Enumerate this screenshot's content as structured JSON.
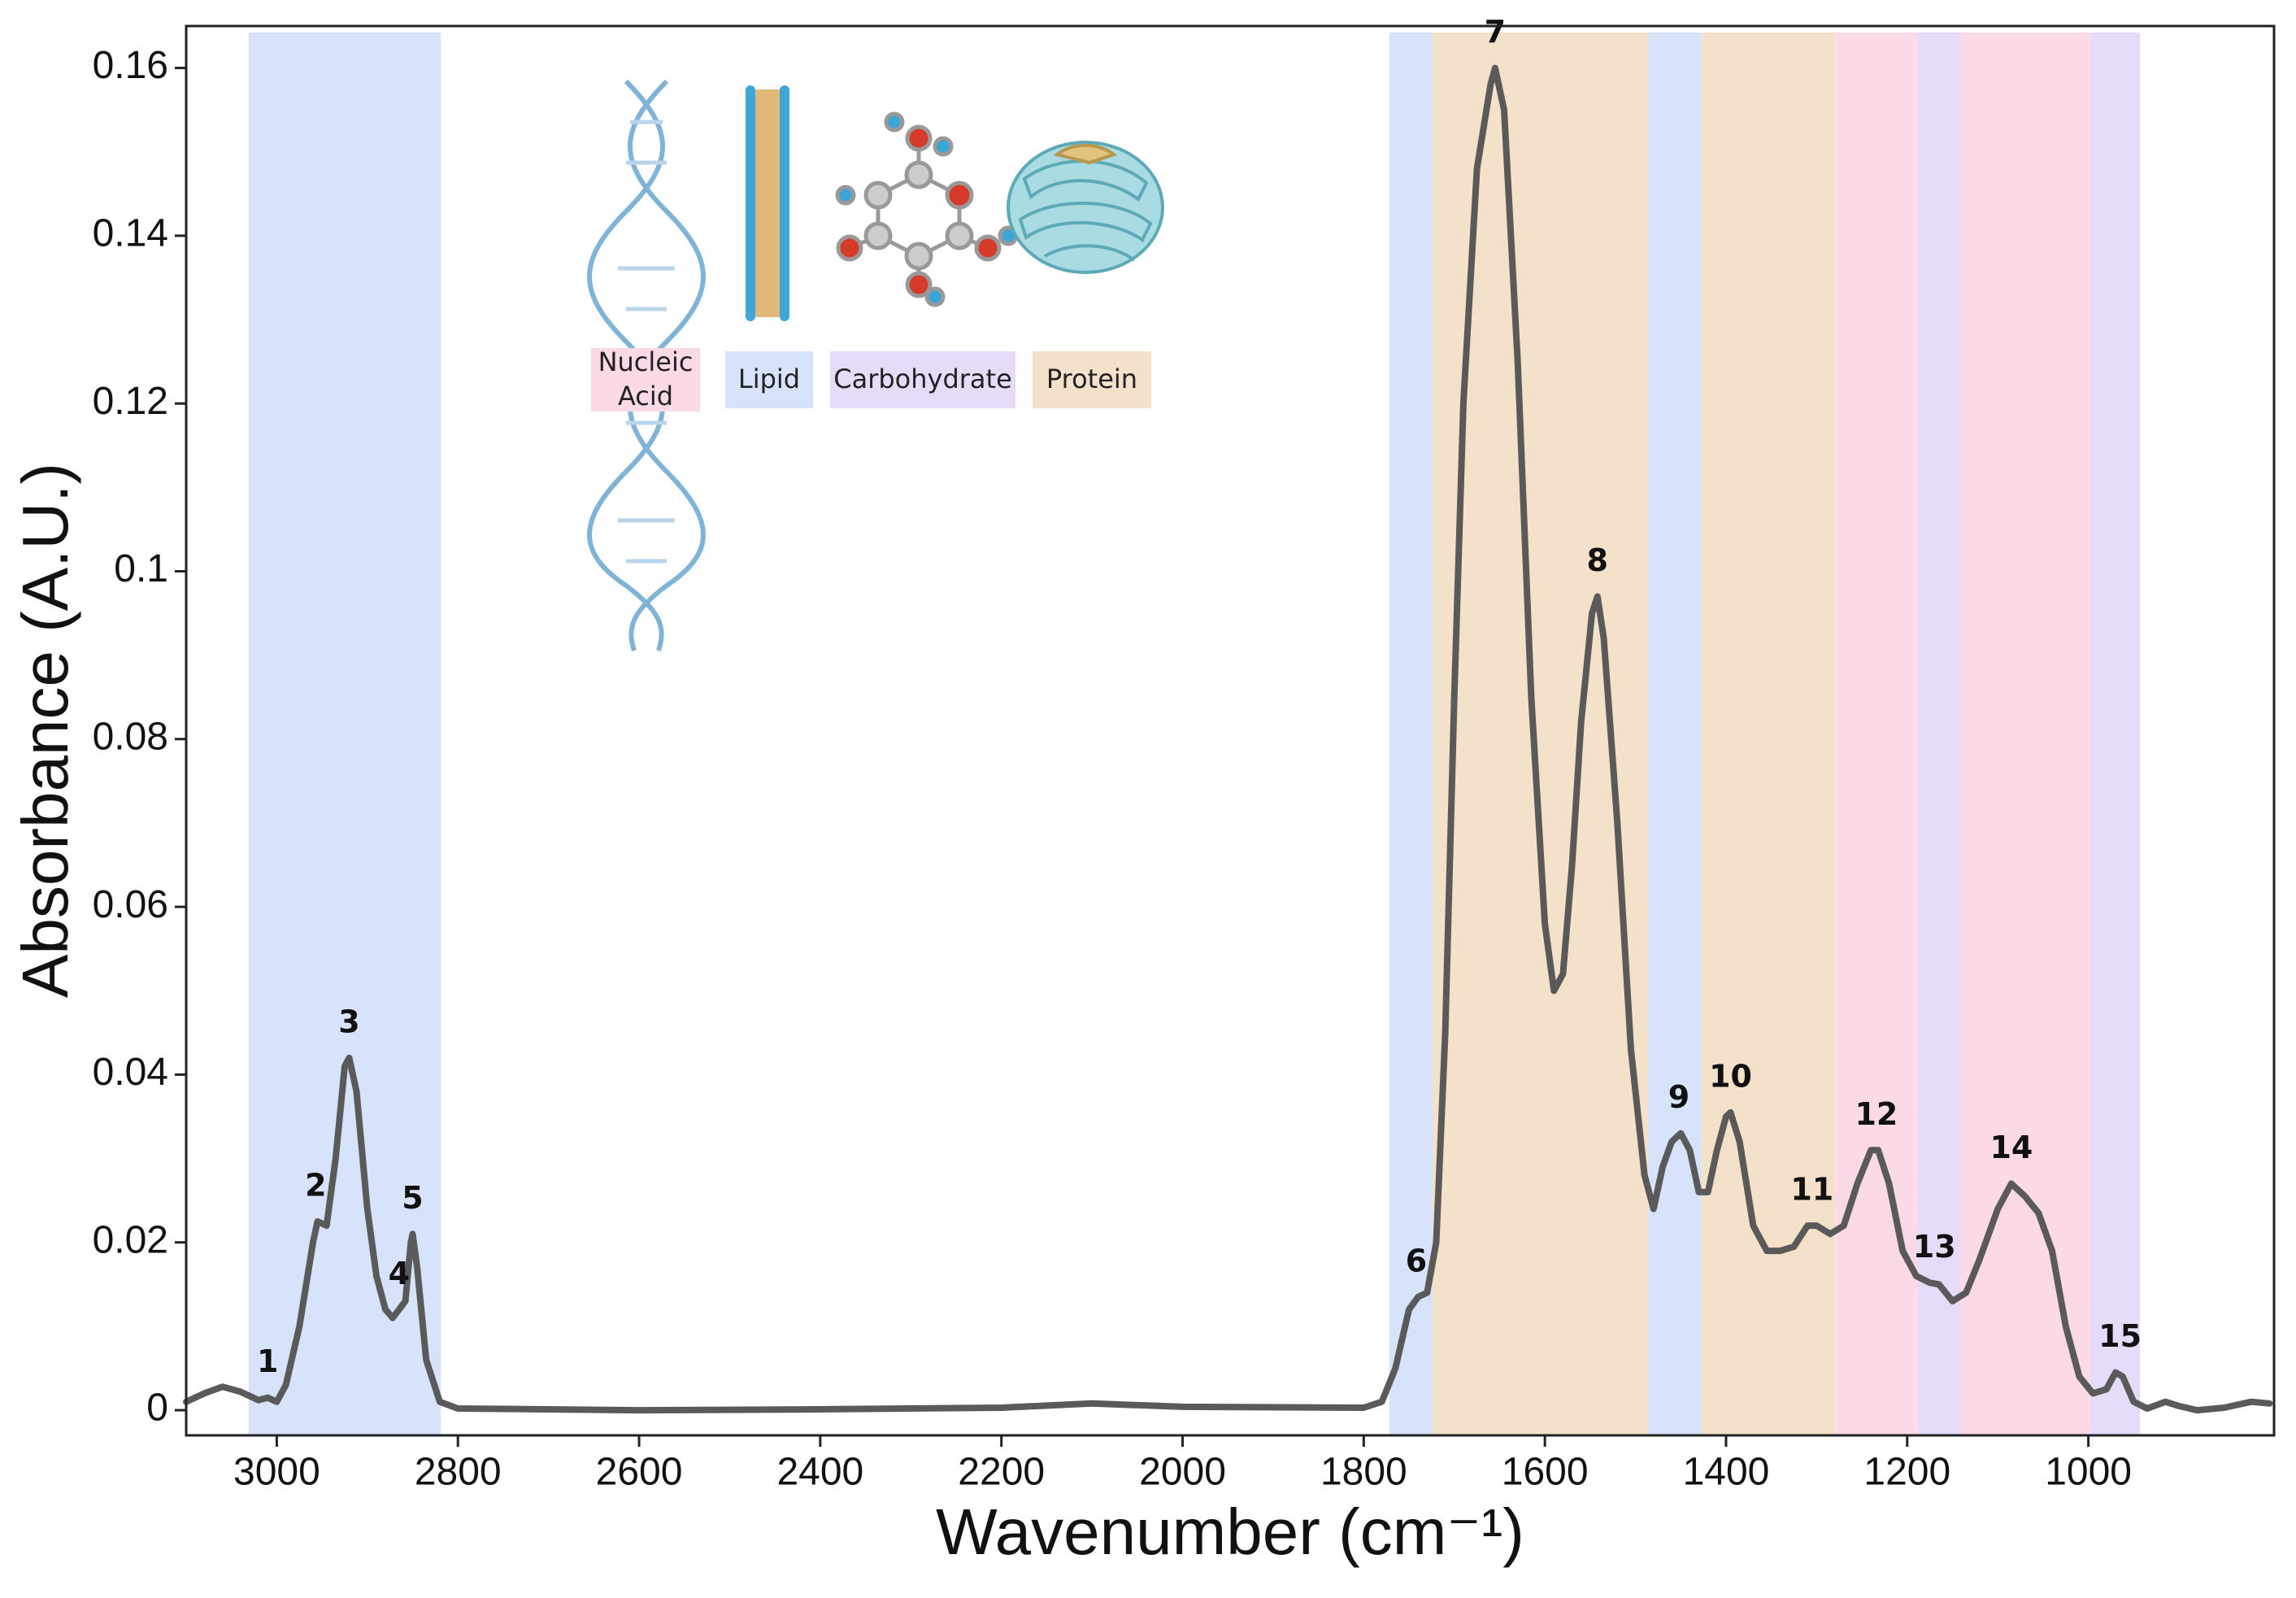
{
  "chart_data": {
    "type": "line",
    "xlabel": "Wavenumber (cm⁻¹)",
    "ylabel": "Absorbance (A.U.)",
    "xlim": [
      3100,
      795
    ],
    "ylim": [
      -0.003,
      0.165
    ],
    "xticks": [
      3000,
      2800,
      2600,
      2400,
      2200,
      2000,
      1800,
      1600,
      1400,
      1200,
      1000
    ],
    "yticks": [
      0,
      0.02,
      0.04,
      0.06,
      0.08,
      0.1,
      0.12,
      0.14,
      0.16
    ],
    "color": "#5a5a5a",
    "x": [
      3100,
      3080,
      3060,
      3040,
      3020,
      3010,
      3000,
      2990,
      2975,
      2960,
      2955,
      2945,
      2935,
      2925,
      2920,
      2912,
      2900,
      2890,
      2880,
      2872,
      2865,
      2858,
      2852,
      2850,
      2845,
      2835,
      2820,
      2800,
      2600,
      2400,
      2200,
      2100,
      2000,
      1800,
      1780,
      1765,
      1750,
      1740,
      1730,
      1720,
      1710,
      1700,
      1690,
      1675,
      1660,
      1655,
      1645,
      1630,
      1615,
      1600,
      1590,
      1580,
      1570,
      1560,
      1548,
      1542,
      1535,
      1520,
      1505,
      1490,
      1480,
      1470,
      1460,
      1450,
      1440,
      1430,
      1420,
      1410,
      1400,
      1395,
      1385,
      1370,
      1355,
      1340,
      1325,
      1310,
      1300,
      1285,
      1270,
      1255,
      1240,
      1232,
      1220,
      1205,
      1190,
      1175,
      1165,
      1150,
      1135,
      1120,
      1100,
      1085,
      1070,
      1055,
      1040,
      1025,
      1010,
      995,
      980,
      970,
      962,
      950,
      935,
      915,
      900,
      880,
      850,
      820,
      800
    ],
    "values": [
      0.001,
      0.002,
      0.0028,
      0.0022,
      0.0012,
      0.0015,
      0.001,
      0.003,
      0.01,
      0.02,
      0.0225,
      0.022,
      0.03,
      0.041,
      0.042,
      0.038,
      0.024,
      0.016,
      0.012,
      0.011,
      0.012,
      0.013,
      0.02,
      0.021,
      0.017,
      0.006,
      0.001,
      0.0002,
      0,
      0.0001,
      0.0003,
      0.0008,
      0.0004,
      0.0003,
      0.001,
      0.005,
      0.012,
      0.0135,
      0.014,
      0.02,
      0.045,
      0.085,
      0.12,
      0.148,
      0.158,
      0.16,
      0.155,
      0.125,
      0.085,
      0.058,
      0.05,
      0.052,
      0.065,
      0.082,
      0.095,
      0.097,
      0.092,
      0.07,
      0.043,
      0.028,
      0.024,
      0.029,
      0.032,
      0.033,
      0.031,
      0.026,
      0.026,
      0.031,
      0.035,
      0.0355,
      0.032,
      0.022,
      0.019,
      0.019,
      0.0195,
      0.022,
      0.022,
      0.021,
      0.022,
      0.027,
      0.031,
      0.031,
      0.027,
      0.019,
      0.016,
      0.0152,
      0.015,
      0.013,
      0.014,
      0.018,
      0.024,
      0.027,
      0.0255,
      0.0235,
      0.019,
      0.01,
      0.004,
      0.002,
      0.0025,
      0.0045,
      0.004,
      0.001,
      0.0002,
      0.001,
      0.0005,
      0,
      0.0003,
      0.001,
      0.0008
    ],
    "bands": [
      {
        "from": 3031,
        "to": 2819,
        "color": "#d6e3fb"
      },
      {
        "from": 1772,
        "to": 1724,
        "color": "#d6e3fb"
      },
      {
        "from": 1724,
        "to": 1486,
        "color": "#f3e1c9"
      },
      {
        "from": 1486,
        "to": 1427,
        "color": "#d6e3fb"
      },
      {
        "from": 1427,
        "to": 1280,
        "color": "#f3e1c9"
      },
      {
        "from": 1280,
        "to": 1189,
        "color": "#fbd9e6"
      },
      {
        "from": 1189,
        "to": 1142,
        "color": "#e6dcf9"
      },
      {
        "from": 1142,
        "to": 998,
        "color": "#fbd9e6"
      },
      {
        "from": 998,
        "to": 943,
        "color": "#e6dcf9"
      }
    ],
    "peaks": [
      {
        "label": "1",
        "x": 3010,
        "y": 0.0015
      },
      {
        "label": "2",
        "x": 2957,
        "y": 0.0225
      },
      {
        "label": "3",
        "x": 2920,
        "y": 0.042
      },
      {
        "label": "4",
        "x": 2865,
        "y": 0.012
      },
      {
        "label": "5",
        "x": 2850,
        "y": 0.021
      },
      {
        "label": "6",
        "x": 1742,
        "y": 0.0135
      },
      {
        "label": "7",
        "x": 1655,
        "y": 0.16
      },
      {
        "label": "8",
        "x": 1542,
        "y": 0.097
      },
      {
        "label": "9",
        "x": 1452,
        "y": 0.033
      },
      {
        "label": "10",
        "x": 1395,
        "y": 0.0355
      },
      {
        "label": "11",
        "x": 1305,
        "y": 0.022
      },
      {
        "label": "12",
        "x": 1234,
        "y": 0.031
      },
      {
        "label": "13",
        "x": 1170,
        "y": 0.0152
      },
      {
        "label": "14",
        "x": 1085,
        "y": 0.027
      },
      {
        "label": "15",
        "x": 965,
        "y": 0.0045
      }
    ],
    "legend": [
      {
        "label": "Nucleic Acid",
        "color": "#fbd9e6"
      },
      {
        "label": "Lipid",
        "color": "#d6e3fb"
      },
      {
        "label": "Carbohydrate",
        "color": "#e6dcf9"
      },
      {
        "label": "Protein",
        "color": "#f3e1c9"
      }
    ]
  }
}
